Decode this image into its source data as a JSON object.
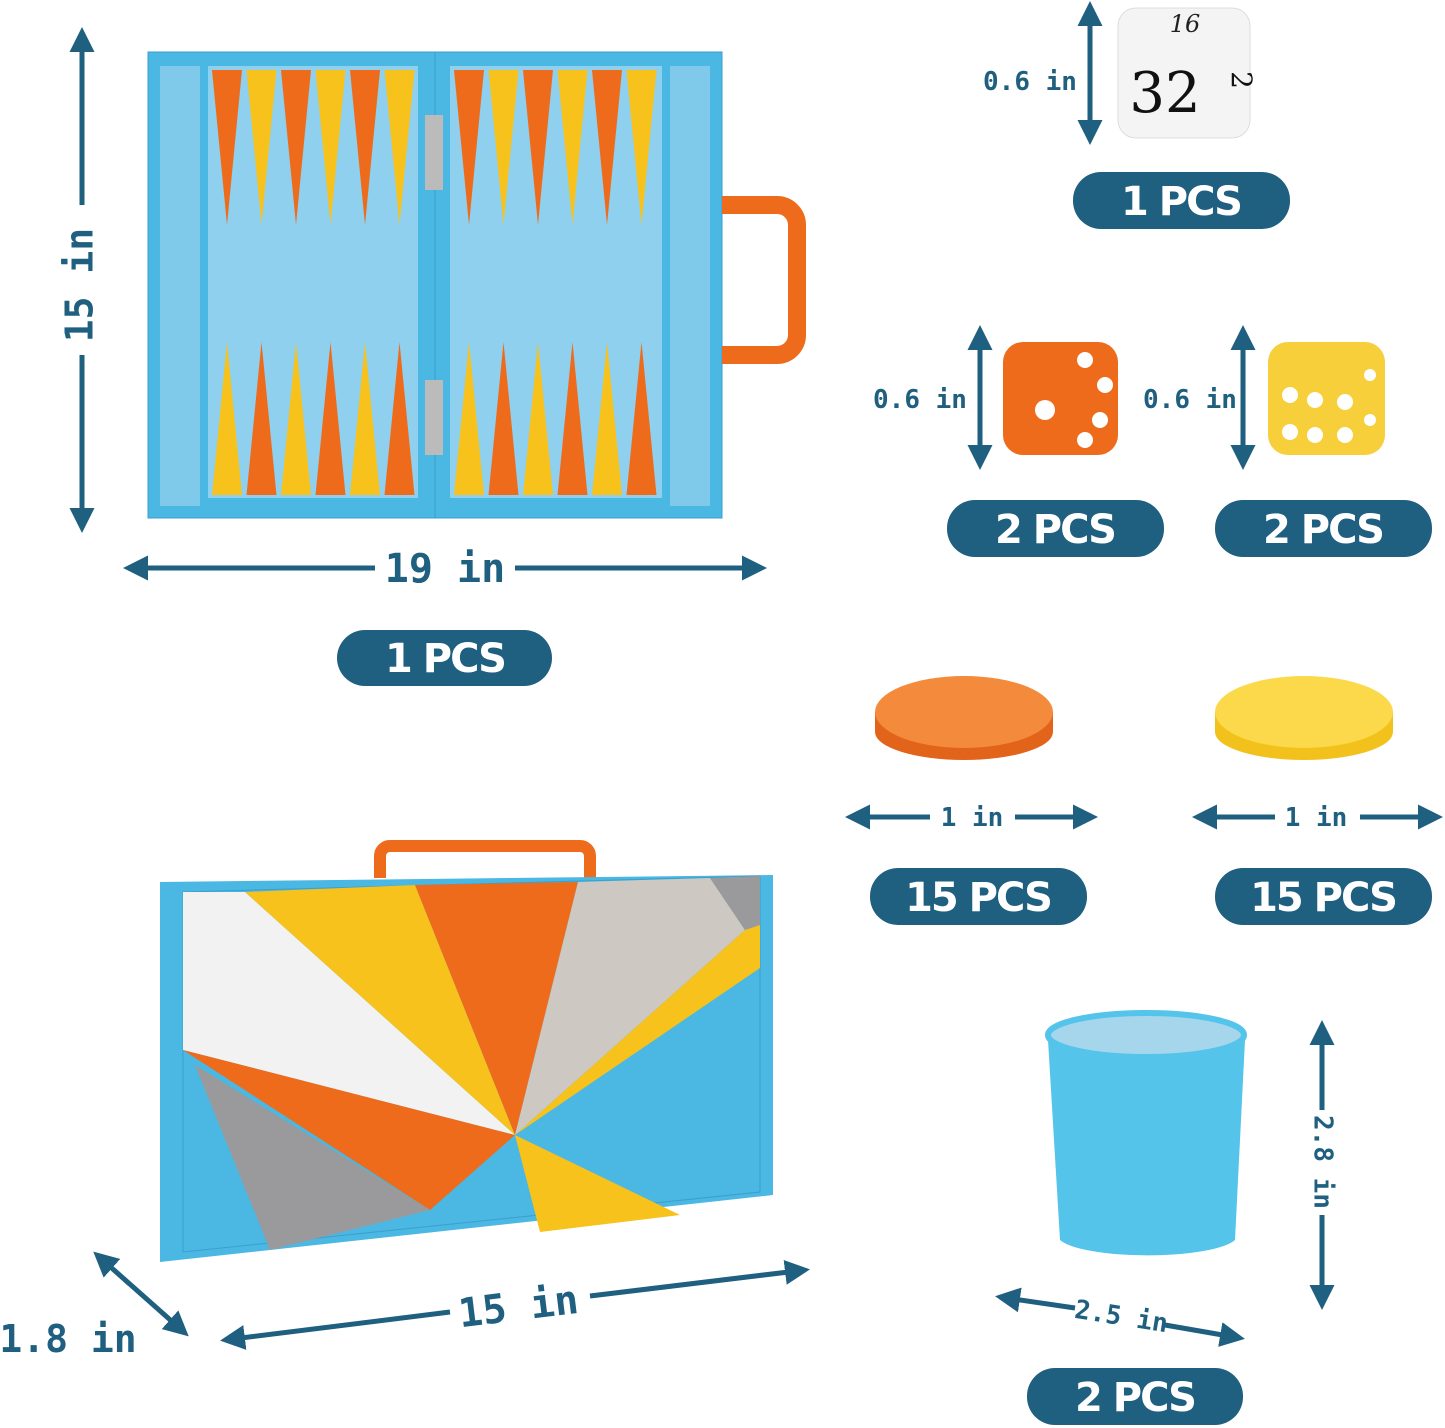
{
  "colors": {
    "accent": "#1f5f7f",
    "board_blue": "#4bb7e3",
    "felt": "#8fd0ef",
    "orange": "#ee6b1c",
    "yellow": "#f6c21b"
  },
  "open_board": {
    "height_label": "15 in",
    "width_label": "19 in",
    "quantity": "1 PCS"
  },
  "doubling_cube": {
    "faces": [
      "16",
      "32",
      "2"
    ],
    "size_label": "0.6 in",
    "quantity": "1 PCS"
  },
  "orange_die": {
    "size_label": "0.6 in",
    "quantity": "2 PCS"
  },
  "yellow_die": {
    "size_label": "0.6 in",
    "quantity": "2 PCS"
  },
  "orange_checker": {
    "size_label": "1 in",
    "quantity": "15 PCS"
  },
  "yellow_checker": {
    "size_label": "1 in",
    "quantity": "15 PCS"
  },
  "closed_case": {
    "width_label": "15 in",
    "depth_label": "1.8 in"
  },
  "dice_cup": {
    "height_label": "2.8 in",
    "width_label": "2.5 in",
    "quantity": "2 PCS"
  }
}
